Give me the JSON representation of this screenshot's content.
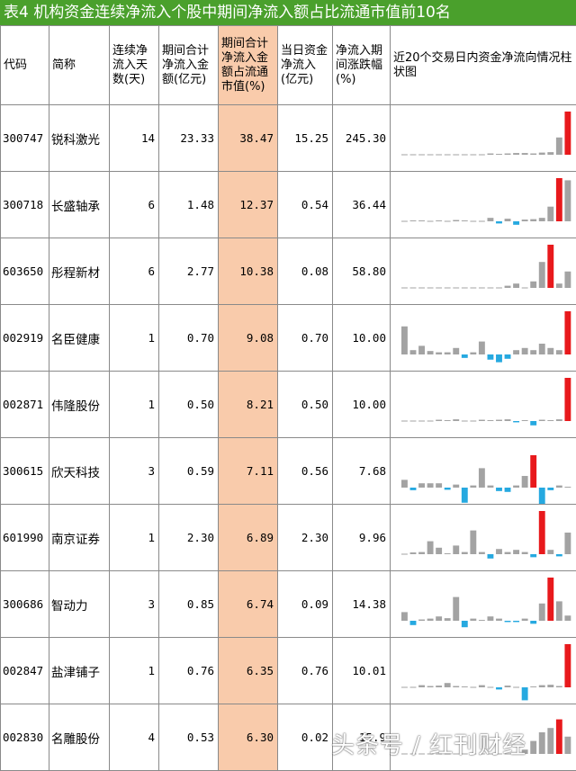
{
  "title": "表4 机构资金连续净流入个股中期间净流入额占比流通市值前10名",
  "headers": {
    "code": "代码",
    "name": "简称",
    "days": "连续净流入天数(天)",
    "amount": "期间合计净流入金额(亿元)",
    "ratio": "期间合计净流入金额占流通市值(%)",
    "today": "当日资金净流入(亿元)",
    "change": "净流入期间涨跌幅(%)",
    "chart": "近20个交易日内资金净流向情况柱状图"
  },
  "rows": [
    {
      "code": "300747",
      "name": "锐科激光",
      "days": "14",
      "amount": "23.33",
      "ratio": "38.47",
      "today": "15.25",
      "change": "245.30",
      "bars": [
        0,
        0,
        0,
        0,
        0,
        0,
        0,
        0,
        0,
        0,
        0.03,
        0.02,
        0.03,
        0.04,
        0.04,
        0.03,
        0.05,
        0.06,
        0.4,
        1.0
      ]
    },
    {
      "code": "300718",
      "name": "长盛轴承",
      "days": "6",
      "amount": "1.48",
      "ratio": "12.37",
      "today": "0.54",
      "change": "36.44",
      "bars": [
        0,
        0.02,
        0.02,
        0,
        0.02,
        0,
        0.03,
        0.02,
        0,
        0,
        0.08,
        -0.05,
        0.06,
        -0.08,
        0.04,
        0.05,
        0.08,
        0.34,
        1.0,
        0.95
      ]
    },
    {
      "code": "603650",
      "name": "彤程新材",
      "days": "6",
      "amount": "2.77",
      "ratio": "10.38",
      "today": "0.08",
      "change": "58.80",
      "bars": [
        0,
        0,
        0,
        0,
        0,
        0,
        0,
        0,
        0,
        0,
        0,
        0,
        0.05,
        0.1,
        0,
        0.15,
        0.6,
        1.0,
        0.1,
        0.38
      ]
    },
    {
      "code": "002919",
      "name": "名臣健康",
      "days": "1",
      "amount": "0.70",
      "ratio": "9.08",
      "today": "0.70",
      "change": "10.00",
      "bars": [
        0.65,
        0.1,
        0.2,
        0.08,
        0.05,
        0.05,
        0.15,
        -0.08,
        0.05,
        0.3,
        -0.12,
        -0.18,
        -0.1,
        0.1,
        0.15,
        0.1,
        0.25,
        0.15,
        0.1,
        1.0
      ]
    },
    {
      "code": "002871",
      "name": "伟隆股份",
      "days": "1",
      "amount": "0.50",
      "ratio": "8.21",
      "today": "0.50",
      "change": "10.00",
      "bars": [
        0,
        0,
        0,
        0,
        0.03,
        0.02,
        0.04,
        0,
        0,
        0.03,
        0.02,
        0.03,
        0.04,
        -0.03,
        0.02,
        -0.1,
        0.03,
        0.02,
        0.04,
        1.0
      ]
    },
    {
      "code": "300615",
      "name": "欣天科技",
      "days": "3",
      "amount": "0.59",
      "ratio": "7.11",
      "today": "0.56",
      "change": "7.68",
      "bars": [
        0.18,
        -0.06,
        0.1,
        0.1,
        0.1,
        -0.05,
        0.07,
        -0.35,
        0.05,
        0.45,
        0.05,
        -0.08,
        -0.1,
        0.05,
        0.27,
        0.75,
        -0.38,
        -0.06,
        0.05,
        0.02
      ]
    },
    {
      "code": "601990",
      "name": "南京证券",
      "days": "1",
      "amount": "2.30",
      "ratio": "6.89",
      "today": "2.30",
      "change": "9.96",
      "bars": [
        0,
        0.04,
        0.05,
        0.3,
        0.15,
        0.02,
        0.2,
        0.05,
        0.55,
        0.05,
        -0.1,
        0.12,
        0.05,
        0.1,
        0.05,
        -0.07,
        1.0,
        0.1,
        -0.05,
        0.5
      ]
    },
    {
      "code": "300686",
      "name": "智动力",
      "days": "3",
      "amount": "0.85",
      "ratio": "6.74",
      "today": "0.09",
      "change": "14.38",
      "bars": [
        0.2,
        -0.1,
        0.03,
        0.05,
        0.1,
        0.06,
        0.55,
        -0.15,
        0.05,
        0.02,
        0.1,
        0.05,
        -0.03,
        -0.03,
        0.05,
        -0.07,
        0.4,
        1.0,
        0.45,
        0.12
      ]
    },
    {
      "code": "002847",
      "name": "盐津铺子",
      "days": "1",
      "amount": "0.76",
      "ratio": "6.35",
      "today": "0.76",
      "change": "10.01",
      "bars": [
        0,
        0,
        0.05,
        0.03,
        0.04,
        0.1,
        0.03,
        0.02,
        0,
        0.05,
        0,
        -0.05,
        0.04,
        0,
        -0.3,
        0.02,
        0.05,
        0.06,
        0.03,
        1.0
      ]
    },
    {
      "code": "002830",
      "name": "名雕股份",
      "days": "4",
      "amount": "0.53",
      "ratio": "6.30",
      "today": "0.02",
      "change": "15.9",
      "bars": [
        0,
        0,
        0,
        0,
        0,
        0,
        0,
        0,
        0,
        0,
        0,
        0,
        0,
        0,
        0.1,
        0.3,
        0.5,
        0.6,
        0.8,
        0.4
      ]
    }
  ],
  "colors": {
    "title_bg": "#4aa02c",
    "highlight": "#f9cbab",
    "bar_pos": "#a3a3a3",
    "bar_neg": "#26a9e0",
    "bar_max": "#e8191c"
  },
  "watermark": "头条号 / 红刊财经"
}
